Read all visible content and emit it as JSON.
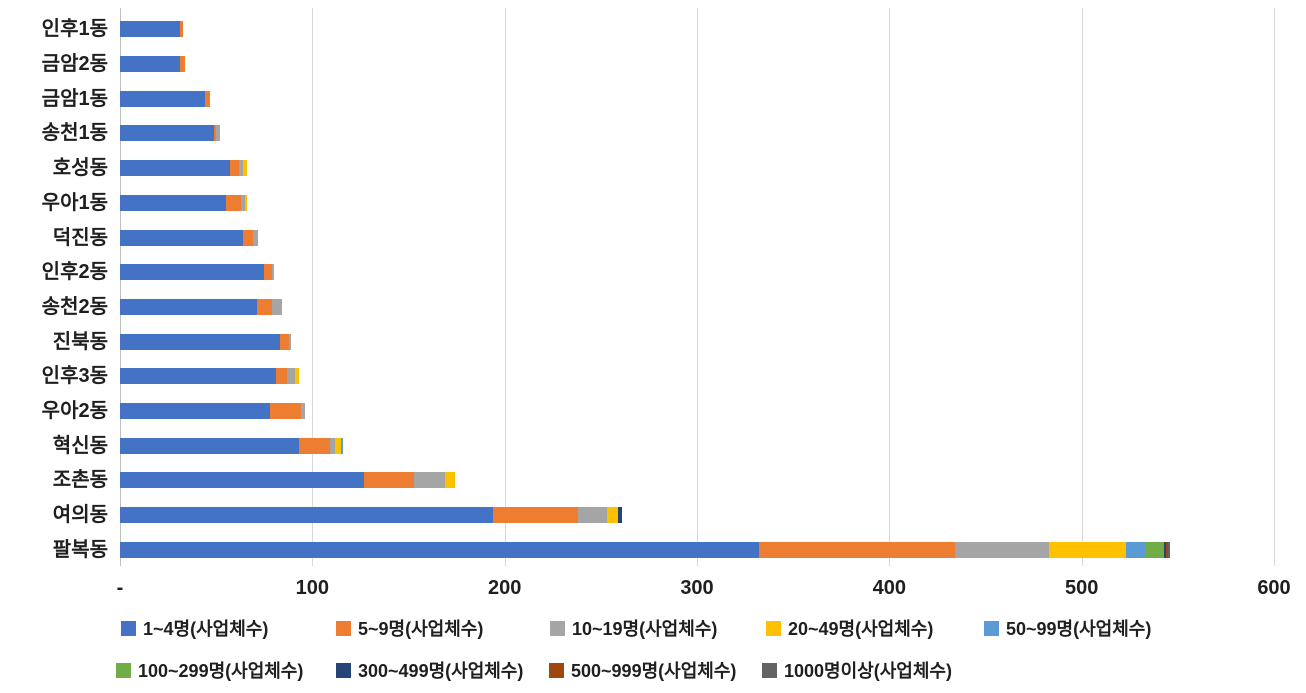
{
  "chart_data": {
    "type": "bar",
    "orientation": "horizontal",
    "stacked": true,
    "title": "",
    "xlabel": "",
    "ylabel": "",
    "xlim": [
      0,
      600
    ],
    "grid": true,
    "legend_position": "bottom",
    "categories": [
      "인후1동",
      "금암2동",
      "금암1동",
      "송천1동",
      "호성동",
      "우아1동",
      "덕진동",
      "인후2동",
      "송천2동",
      "진북동",
      "인후3동",
      "우아2동",
      "혁신동",
      "조촌동",
      "여의동",
      "팔복동"
    ],
    "x_axis": {
      "ticks": [
        "-",
        "100",
        "200",
        "300",
        "400",
        "500",
        "600"
      ],
      "tick_values": [
        0,
        100,
        200,
        300,
        400,
        500,
        600
      ]
    },
    "series": [
      {
        "name": "1~4명(사업체수)",
        "color": "#4472c4",
        "values": [
          31,
          31,
          44,
          49,
          57,
          55,
          64,
          75,
          71,
          83,
          81,
          78,
          93,
          127,
          194,
          332
        ]
      },
      {
        "name": "5~9명(사업체수)",
        "color": "#ed7d31",
        "values": [
          2,
          3,
          3,
          1,
          5,
          8,
          5,
          4,
          8,
          5,
          6,
          16,
          16,
          26,
          44,
          102
        ]
      },
      {
        "name": "10~19명(사업체수)",
        "color": "#a5a5a5",
        "values": [
          0,
          0,
          0,
          2,
          2,
          2,
          3,
          1,
          5,
          1,
          4,
          2,
          3,
          16,
          15,
          49
        ]
      },
      {
        "name": "20~49명(사업체수)",
        "color": "#ffc000",
        "values": [
          0,
          0,
          0,
          0,
          2,
          1,
          0,
          0,
          0,
          0,
          2,
          0,
          3,
          5,
          6,
          40
        ]
      },
      {
        "name": "50~99명(사업체수)",
        "color": "#5b9bd5",
        "values": [
          0,
          0,
          0,
          0,
          0,
          0,
          0,
          0,
          0,
          0,
          0,
          0,
          1,
          0,
          0,
          10
        ]
      },
      {
        "name": "100~299명(사업체수)",
        "color": "#70ad47",
        "values": [
          0,
          0,
          0,
          0,
          0,
          0,
          0,
          0,
          0,
          0,
          0,
          0,
          0,
          0,
          0,
          10
        ]
      },
      {
        "name": "300~499명(사업체수)",
        "color": "#264478",
        "values": [
          0,
          0,
          0,
          0,
          0,
          0,
          0,
          0,
          0,
          0,
          0,
          0,
          0,
          0,
          2,
          1
        ]
      },
      {
        "name": "500~999명(사업체수)",
        "color": "#9e480e",
        "values": [
          0,
          0,
          0,
          0,
          0,
          0,
          0,
          0,
          0,
          0,
          0,
          0,
          0,
          0,
          0,
          1
        ]
      },
      {
        "name": "1000명이상(사업체수)",
        "color": "#636363",
        "values": [
          0,
          0,
          0,
          0,
          0,
          0,
          0,
          0,
          0,
          0,
          0,
          0,
          0,
          0,
          0,
          1
        ]
      }
    ]
  }
}
